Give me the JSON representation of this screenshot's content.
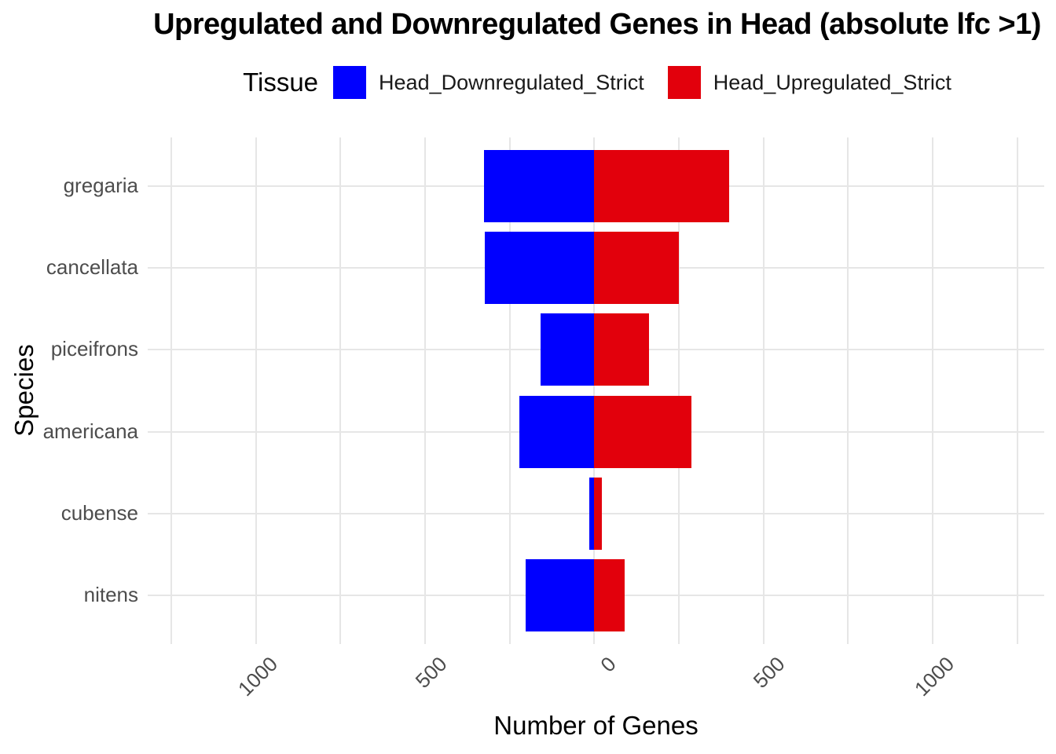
{
  "title": "Upregulated and Downregulated Genes in Head (absolute lfc >1)",
  "legend": {
    "title": "Tissue",
    "items": [
      {
        "label": "Head_Downregulated_Strict",
        "color": "#0000ff"
      },
      {
        "label": "Head_Upregulated_Strict",
        "color": "#e2000c"
      }
    ]
  },
  "chart_data": {
    "type": "bar",
    "orientation": "horizontal-diverging",
    "title": "Upregulated and Downregulated Genes in Head (absolute lfc >1)",
    "xlabel": "Number of Genes",
    "ylabel": "Species",
    "categories": [
      "gregaria",
      "cancellata",
      "piceifrons",
      "americana",
      "cubense",
      "nitens"
    ],
    "series": [
      {
        "name": "Head_Downregulated_Strict",
        "direction": "negative",
        "color": "#0000ff",
        "values": [
          326,
          324,
          158,
          222,
          15,
          203
        ]
      },
      {
        "name": "Head_Upregulated_Strict",
        "direction": "positive",
        "color": "#e2000c",
        "values": [
          400,
          251,
          163,
          287,
          22,
          89
        ]
      }
    ],
    "x_ticks": [
      -1000,
      -500,
      0,
      500,
      1000
    ],
    "x_tick_labels": [
      "1000",
      "500",
      "0",
      "500",
      "1000"
    ],
    "x_minor_ticks": [
      -1250,
      -750,
      -250,
      250,
      750,
      1250
    ],
    "xlim": [
      -1320,
      1330
    ],
    "grid": true,
    "legend_position": "top",
    "colors": {
      "background": "#ffffff",
      "gridline": "#e6e6e6",
      "tick_text": "#4d4d4d",
      "title_text": "#000000"
    }
  }
}
